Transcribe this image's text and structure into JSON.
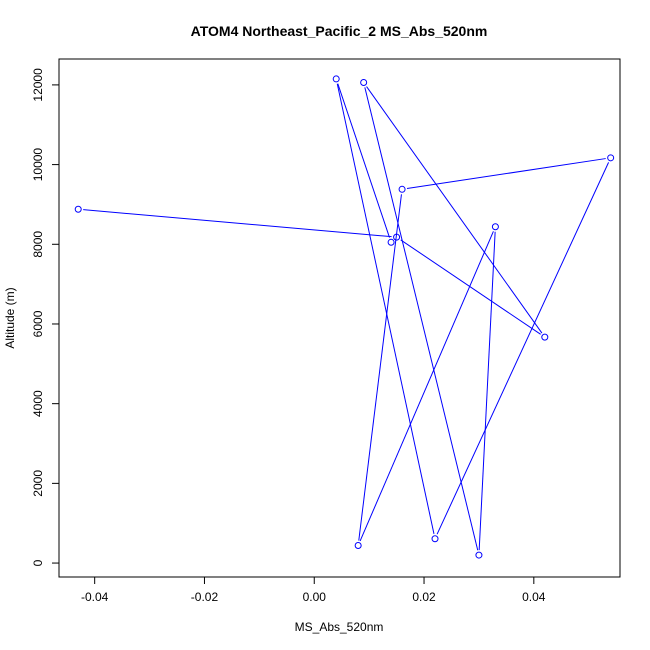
{
  "chart_data": {
    "type": "line",
    "title": "ATOM4 Northeast_Pacific_2 MS_Abs_520nm",
    "xlabel": "MS_Abs_520nm",
    "ylabel": "Altitude (m)",
    "xlim": [
      -0.0465,
      0.0557
    ],
    "ylim": [
      -350,
      12650
    ],
    "x_ticks": [
      -0.04,
      -0.02,
      0.0,
      0.02,
      0.04
    ],
    "x_tick_labels": [
      "-0.04",
      "-0.02",
      "0.00",
      "0.02",
      "0.04"
    ],
    "y_ticks": [
      0,
      2000,
      4000,
      6000,
      8000,
      10000,
      12000
    ],
    "y_tick_labels": [
      "0",
      "2000",
      "4000",
      "6000",
      "8000",
      "10000",
      "12000"
    ],
    "grid": false,
    "series": [
      {
        "color": "#0000ff",
        "marker": "open-circle",
        "x": [
          -0.043,
          0.015,
          0.042,
          0.009,
          0.03,
          0.033,
          0.008,
          0.016,
          0.054,
          0.022,
          0.004,
          0.014
        ],
        "y": [
          8880,
          8180,
          5670,
          12060,
          200,
          8440,
          440,
          9380,
          10170,
          610,
          12150,
          8050
        ]
      }
    ]
  }
}
